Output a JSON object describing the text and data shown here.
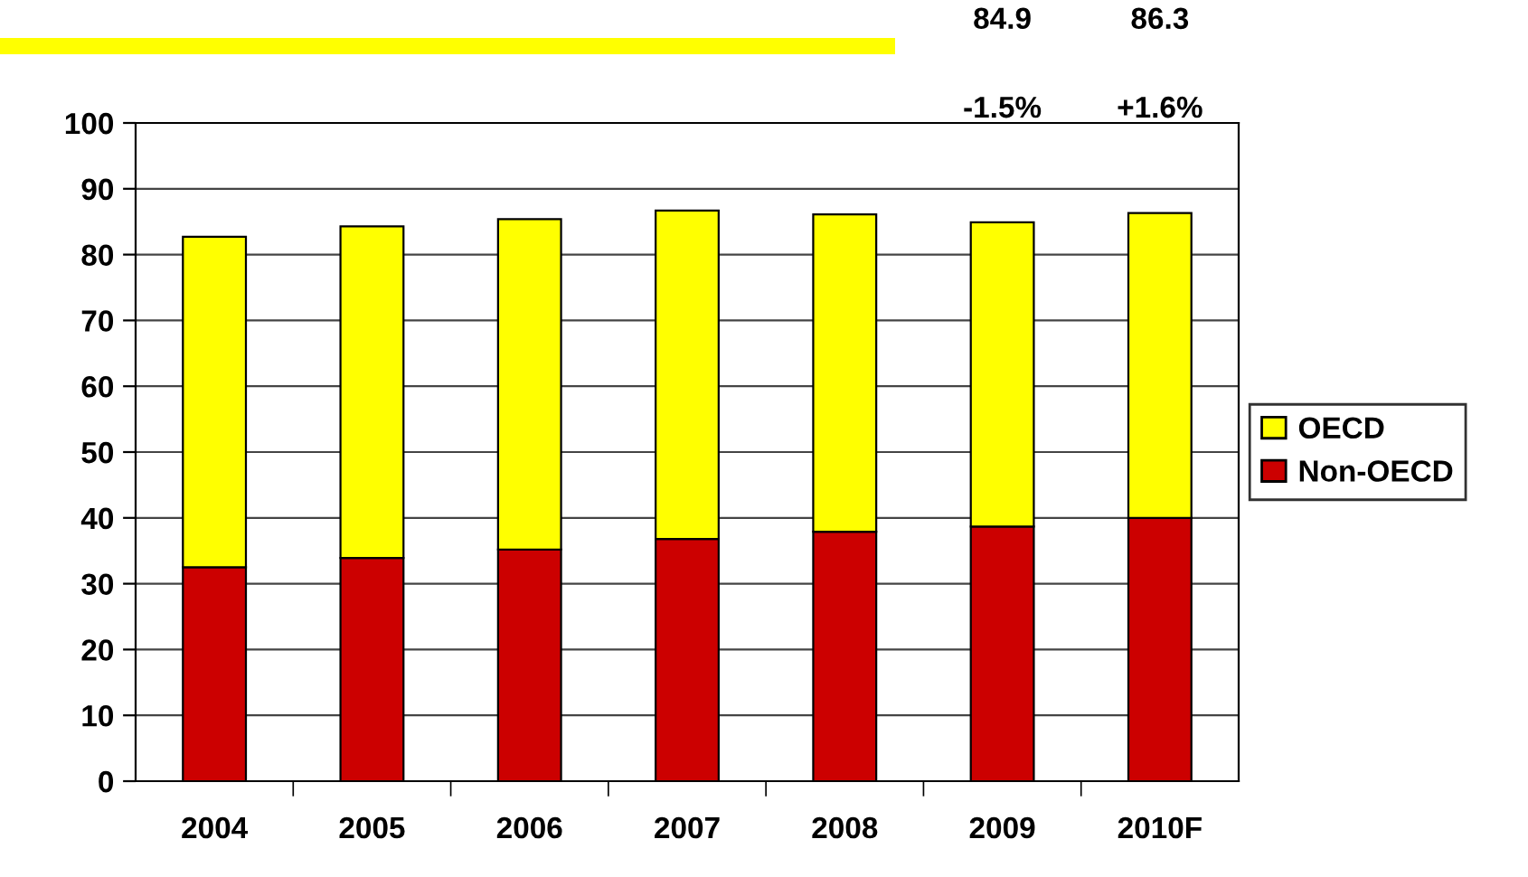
{
  "chart_data": {
    "type": "bar",
    "stacked": true,
    "categories": [
      "2004",
      "2005",
      "2006",
      "2007",
      "2008",
      "2009",
      "2010F"
    ],
    "series": [
      {
        "name": "Non-OECD",
        "color": "#cc0000",
        "values": [
          32.5,
          33.9,
          35.2,
          36.8,
          37.9,
          38.7,
          40.0
        ]
      },
      {
        "name": "OECD",
        "color": "#ffff00",
        "values": [
          50.2,
          50.4,
          50.2,
          49.9,
          48.2,
          46.2,
          46.3
        ]
      }
    ],
    "ylim": [
      0,
      100
    ],
    "yticks": [
      0,
      10,
      20,
      30,
      40,
      50,
      60,
      70,
      80,
      90,
      100
    ],
    "grid": "y",
    "legend": "right",
    "annotations": [
      "84.9",
      "86.3",
      "-1.5%",
      "+1.6%"
    ]
  }
}
